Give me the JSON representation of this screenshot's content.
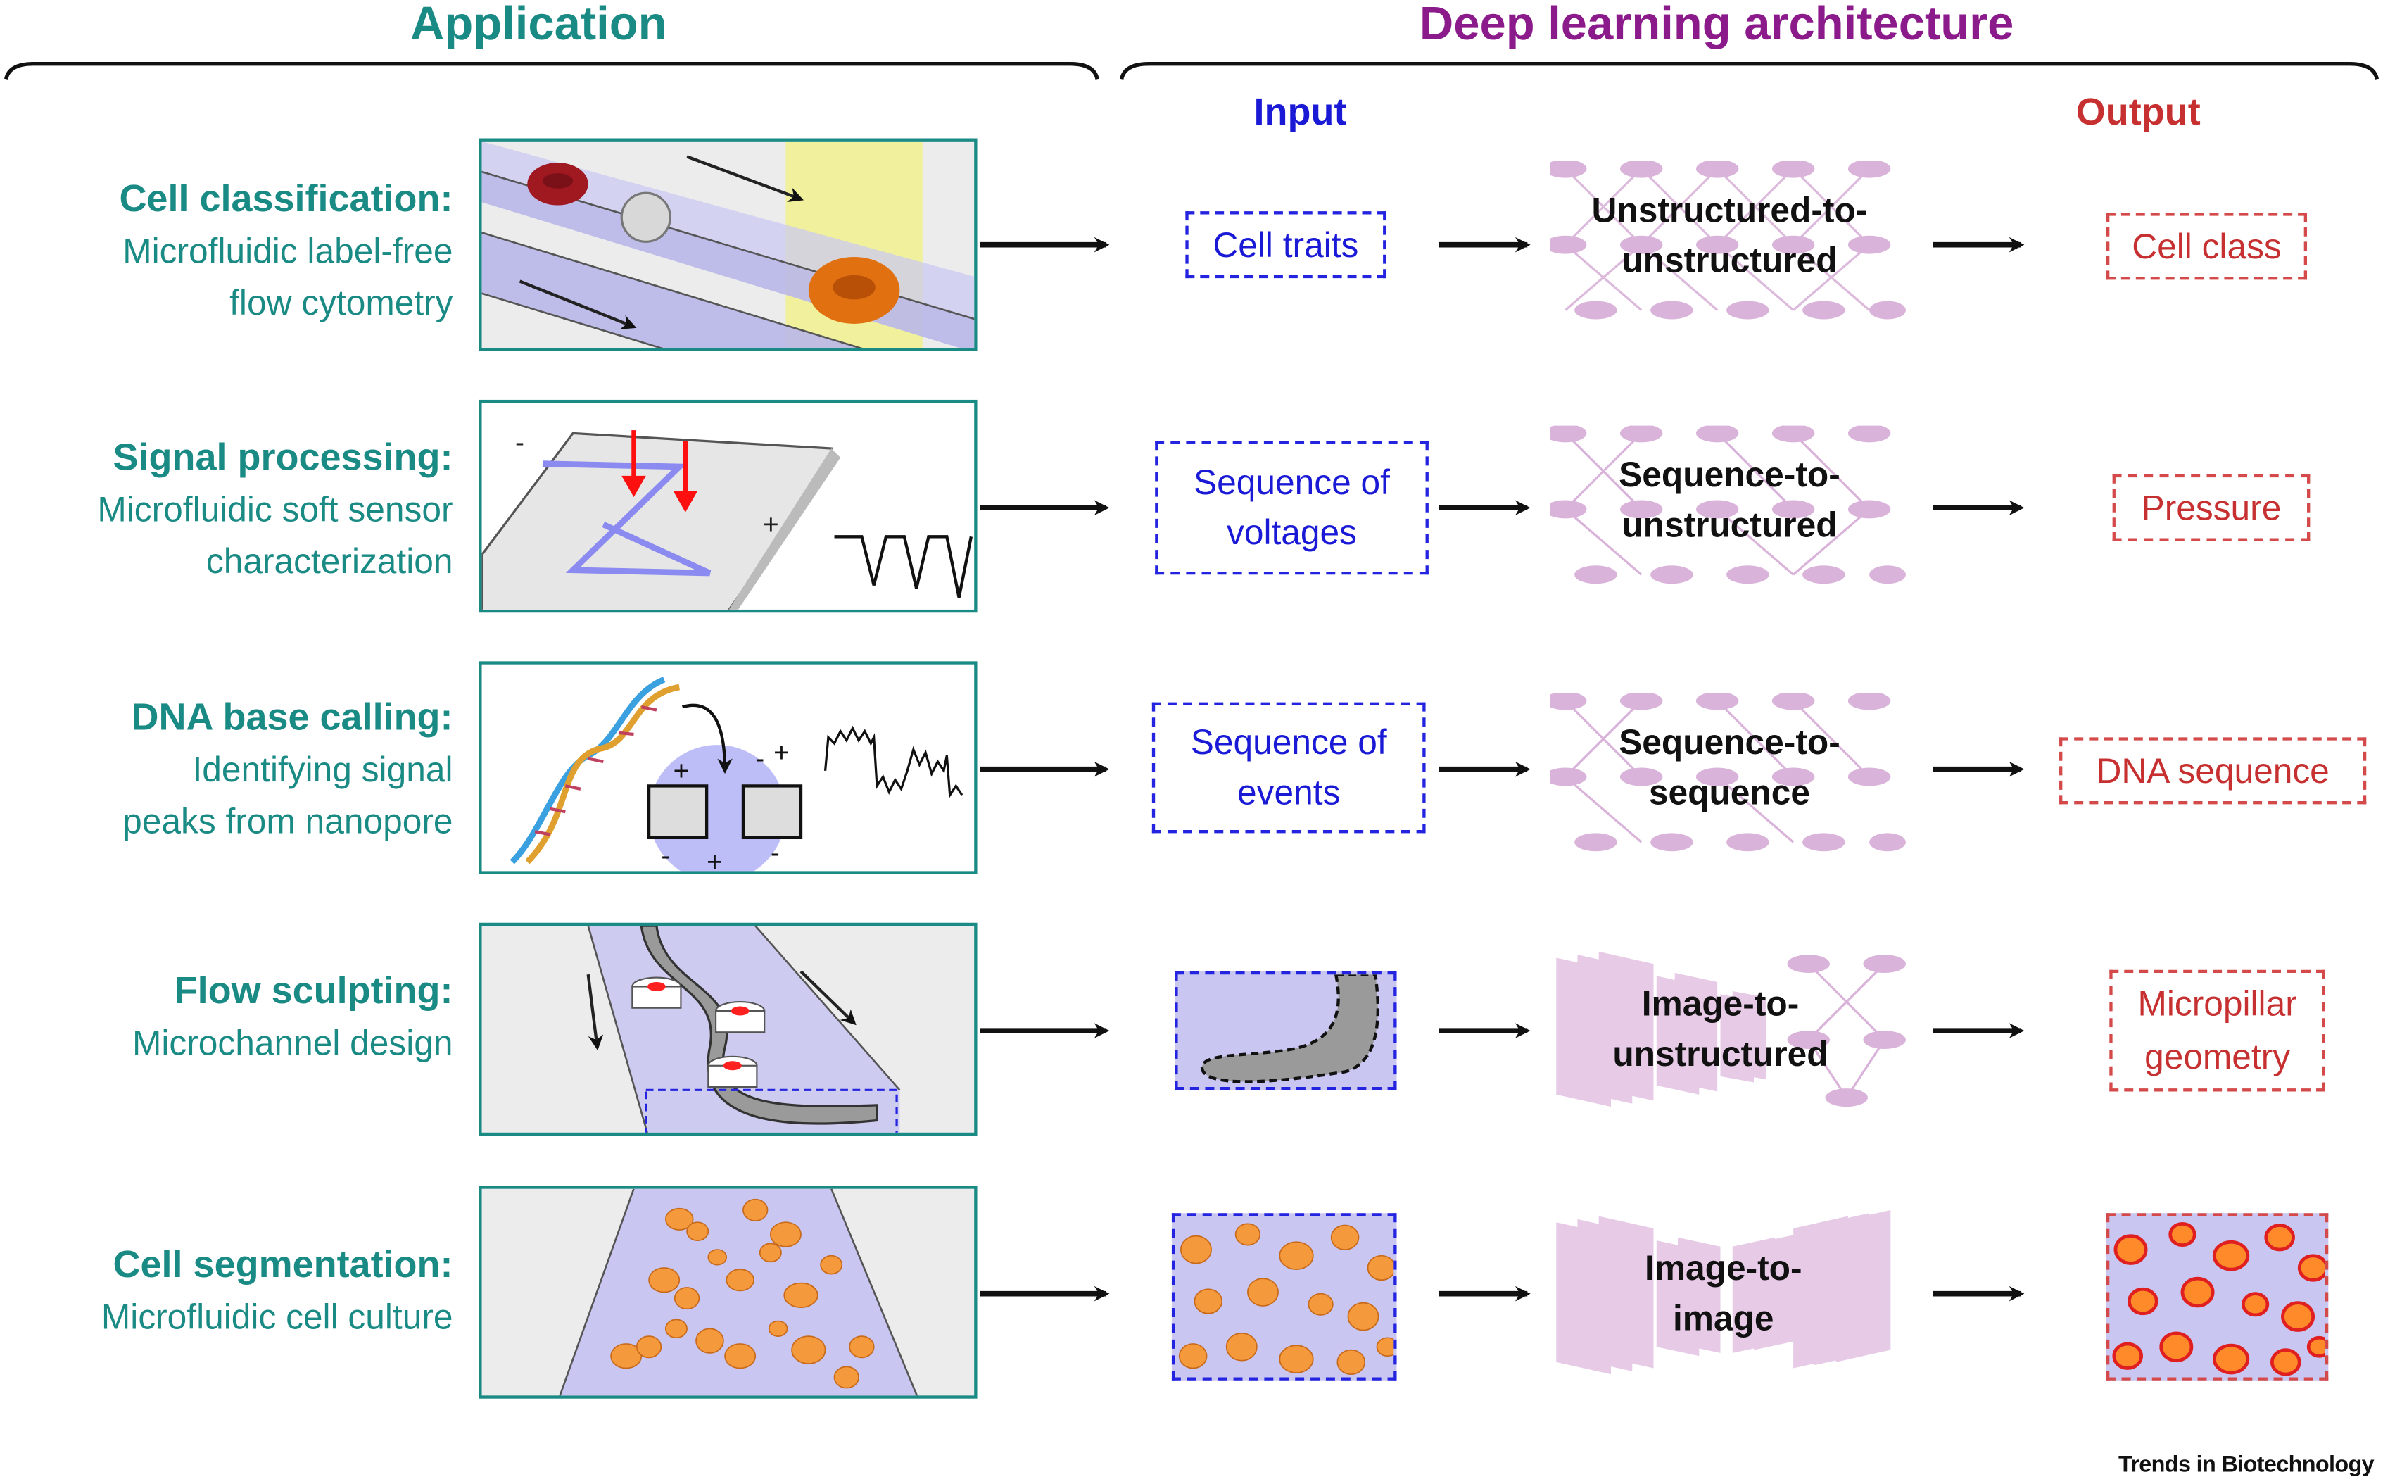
{
  "headers": {
    "application": "Application",
    "architecture": "Deep learning architecture",
    "input": "Input",
    "output": "Output"
  },
  "rows": [
    {
      "title": "Cell classification:",
      "desc1": "Microfluidic label-free",
      "desc2": "flow cytometry",
      "input1": "Cell traits",
      "input2": "",
      "arch1": "Unstructured-to-",
      "arch2": "unstructured",
      "output1": "Cell class",
      "output2": ""
    },
    {
      "title": "Signal processing:",
      "desc1": "Microfluidic soft sensor",
      "desc2": "characterization",
      "input1": "Sequence of",
      "input2": "voltages",
      "arch1": "Sequence-to-",
      "arch2": "unstructured",
      "output1": "Pressure",
      "output2": ""
    },
    {
      "title": "DNA base calling:",
      "desc1": "Identifying signal",
      "desc2": "peaks from nanopore",
      "input1": "Sequence of",
      "input2": "events",
      "arch1": "Sequence-to-",
      "arch2": "sequence",
      "output1": "DNA sequence",
      "output2": ""
    },
    {
      "title": "Flow sculpting:",
      "desc1": "Microchannel design",
      "desc2": "",
      "input1": "",
      "input2": "",
      "arch1": "Image-to-",
      "arch2": "unstructured",
      "output1": "Micropillar",
      "output2": "geometry"
    },
    {
      "title": "Cell segmentation:",
      "desc1": "Microfluidic cell culture",
      "desc2": "",
      "input1": "",
      "input2": "",
      "arch1": "Image-to-",
      "arch2": "image",
      "output1": "",
      "output2": ""
    }
  ],
  "footer": "Trends in Biotechnology",
  "colors": {
    "teal": "#1a8a84",
    "purple": "#8b1a8b",
    "blue": "#1a1ad6",
    "red": "#c73030",
    "network": "#d9b3d9"
  },
  "icons": [
    "network-icon",
    "arrow-icon",
    "bracket-icon"
  ]
}
